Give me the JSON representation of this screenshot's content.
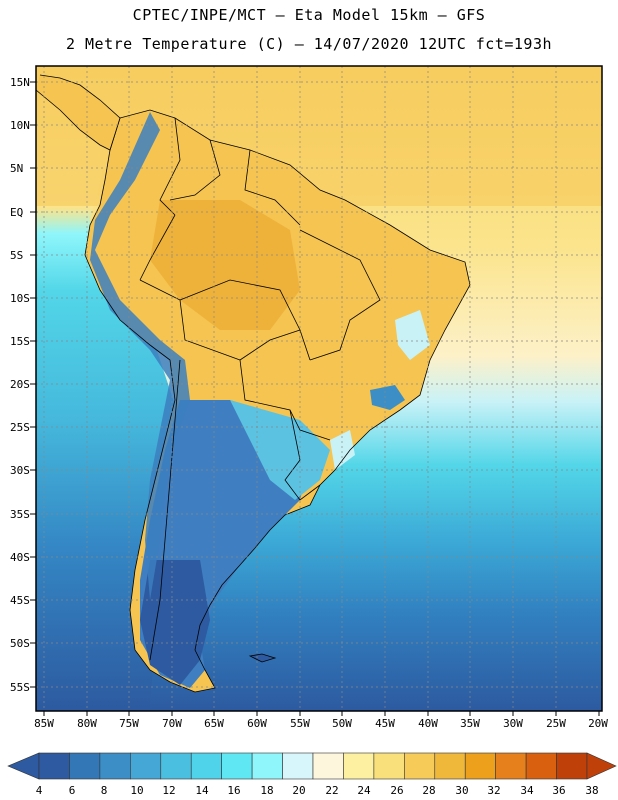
{
  "header": {
    "line1": "CPTEC/INPE/MCT –  Eta Model 15km – GFS",
    "line2": "2 Metre Temperature (C) – 14/07/2020 12UTC fct=193h"
  },
  "map": {
    "lat_labels": [
      "15N",
      "10N",
      "5N",
      "EQ",
      "5S",
      "10S",
      "15S",
      "20S",
      "25S",
      "30S",
      "35S",
      "40S",
      "45S",
      "50S",
      "55S"
    ],
    "lon_labels": [
      "85W",
      "80W",
      "75W",
      "70W",
      "65W",
      "60W",
      "55W",
      "50W",
      "45W",
      "40W",
      "35W",
      "30W",
      "25W",
      "20W"
    ],
    "colors": {
      "frame": "#000000",
      "grid": "#888888",
      "land_warm": "#f6c451",
      "land_hot": "#eeb23a",
      "ocean_warm": "#fce28a",
      "ocean_mid": "#52d6e8",
      "ocean_cool": "#2f8fc8",
      "ocean_cold": "#2d5aa0",
      "andes": "#3c7fbf"
    }
  },
  "colorbar": {
    "labels": [
      "4",
      "6",
      "8",
      "10",
      "12",
      "14",
      "16",
      "18",
      "20",
      "22",
      "24",
      "26",
      "28",
      "30",
      "32",
      "34",
      "36",
      "38"
    ],
    "colors": [
      "#2d5aa0",
      "#3477b6",
      "#3c8fc6",
      "#45a7d6",
      "#4bbfe0",
      "#4fd3ea",
      "#5fe8f3",
      "#8ff6fb",
      "#d6f6fb",
      "#fdf6dc",
      "#fdf0a0",
      "#fae07a",
      "#f6cb58",
      "#f0b83a",
      "#eca01c",
      "#e6801c",
      "#d8600f",
      "#c0400a"
    ]
  }
}
